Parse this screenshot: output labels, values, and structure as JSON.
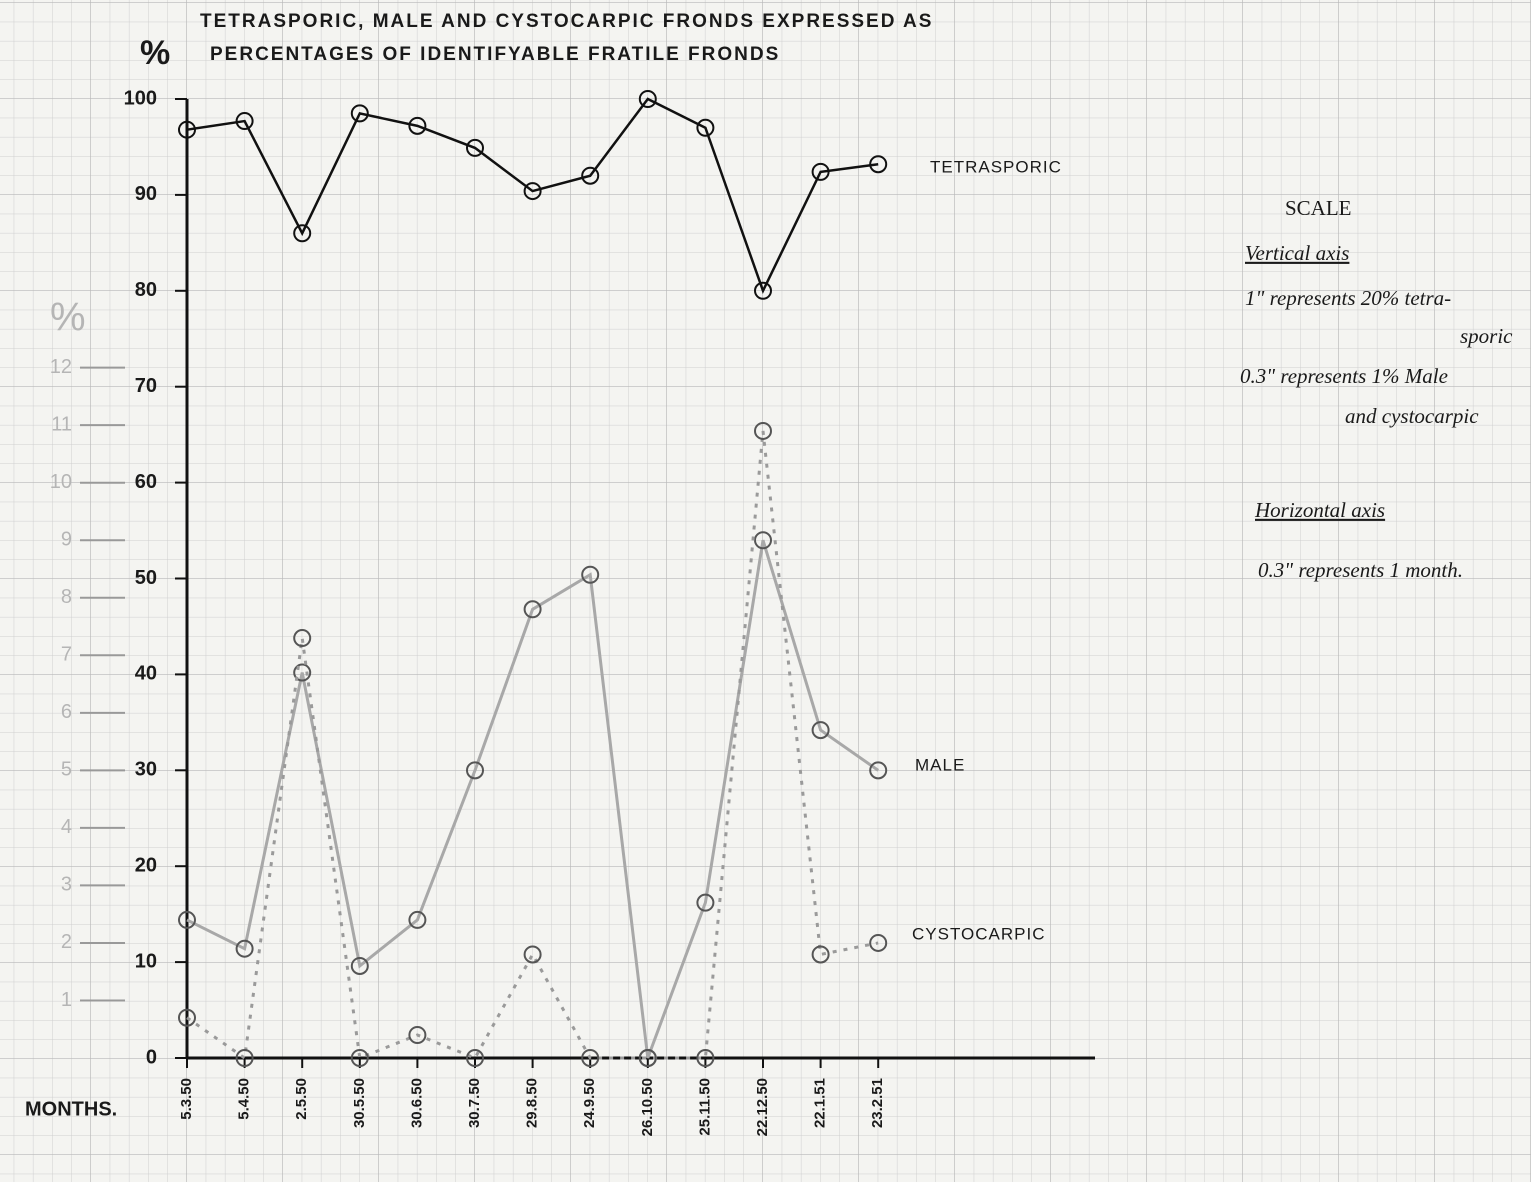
{
  "chart_data": {
    "type": "line",
    "title": "TETRASPORIC, MALE AND CYSTOCARPIC FRONDS EXPRESSED AS",
    "subtitle": "PERCENTAGES OF IDENTIFYABLE FRATILE FRONDS",
    "y_label": "%",
    "y2_label": "%",
    "x_label": "MONTHS.",
    "categories": [
      "5.3.50",
      "5.4.50",
      "2.5.50",
      "30.5.50",
      "30.6.50",
      "30.7.50",
      "29.8.50",
      "24.9.50",
      "26.10.50",
      "25.11.50",
      "22.12.50",
      "22.1.51",
      "23.2.51"
    ],
    "ylim": [
      0,
      100
    ],
    "yticks": [
      0,
      10,
      20,
      30,
      40,
      50,
      60,
      70,
      80,
      90,
      100
    ],
    "y2lim": [
      0,
      16.67
    ],
    "y2ticks": [
      1,
      2,
      3,
      4,
      5,
      6,
      7,
      8,
      9,
      10,
      11,
      12
    ],
    "series": [
      {
        "name": "TETRASPORIC",
        "color": "#111111",
        "values": [
          96.8,
          97.7,
          86.0,
          98.5,
          97.2,
          94.9,
          90.4,
          92.0,
          100,
          97.0,
          80.0,
          92.4,
          93.2
        ]
      },
      {
        "name": "MALE",
        "color": "#a8a8a8",
        "axis": "y2",
        "values": [
          2.4,
          1.9,
          6.7,
          1.6,
          2.4,
          5.0,
          7.8,
          8.4,
          0,
          2.7,
          9.0,
          5.7,
          5.0
        ]
      },
      {
        "name": "CYSTOCARPIC",
        "color": "#9a9a9a",
        "axis": "y2",
        "dashed": true,
        "values": [
          0.7,
          0,
          7.3,
          0,
          0.4,
          0,
          1.8,
          0,
          0,
          0,
          10.9,
          1.8,
          2.0
        ]
      }
    ],
    "scale_note": {
      "title": "SCALE",
      "vertical_heading": "Vertical axis",
      "vertical_lines": [
        "1\" represents 20% tetra-",
        "sporic",
        "0.3\" represents 1% Male",
        "and cystocarpic"
      ],
      "horizontal_heading": "Horizontal axis",
      "horizontal_line": "0.3\" represents 1 month."
    }
  }
}
